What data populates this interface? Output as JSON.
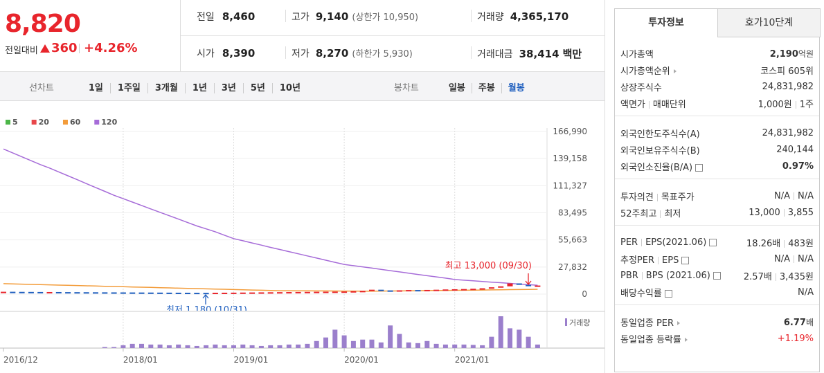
{
  "price": {
    "current": "8,820",
    "change_label": "전일대비",
    "change": "360",
    "change_rate": "+4.26%"
  },
  "summary": {
    "prev_label": "전일",
    "prev": "8,460",
    "high_label": "고가",
    "high": "9,140",
    "upper_label": "상한가",
    "upper": "10,950",
    "volume_label": "거래량",
    "volume": "4,365,170",
    "open_label": "시가",
    "open": "8,390",
    "low_label": "저가",
    "low": "8,270",
    "lower_label": "하한가",
    "lower": "5,930",
    "amount_label": "거래대금",
    "amount": "38,414",
    "amount_unit": "백만"
  },
  "toolbar": {
    "line_label": "선차트",
    "line_items": [
      "1일",
      "1주일",
      "3개월",
      "1년",
      "3년",
      "5년",
      "10년"
    ],
    "candle_label": "봉차트",
    "candle_items": [
      "일봉",
      "주봉",
      "월봉"
    ],
    "candle_active": 2
  },
  "tabs": [
    "투자정보",
    "호가10단계"
  ],
  "info": {
    "groups": [
      [
        {
          "label": "시가총액",
          "value": "2,190",
          "unit": "억원",
          "bold": true
        },
        {
          "label": "시가총액순위",
          "arrow": true,
          "value": "코스피 605위"
        },
        {
          "label": "상장주식수",
          "value": "24,831,982"
        },
        {
          "label": [
            "액면가",
            "매매단위"
          ],
          "value": [
            "1,000원",
            "1주"
          ]
        }
      ],
      [
        {
          "label": "외국인한도주식수(A)",
          "value": "24,831,982"
        },
        {
          "label": "외국인보유주식수(B)",
          "value": "240,144"
        },
        {
          "label": "외국인소진율(B/A)",
          "help": true,
          "value": "0.97%",
          "bold": true
        }
      ],
      [
        {
          "label": [
            "투자의견",
            "목표주가"
          ],
          "value": [
            "N/A",
            "N/A"
          ]
        },
        {
          "label": [
            "52주최고",
            "최저"
          ],
          "value": [
            "13,000",
            "3,855"
          ]
        }
      ],
      [
        {
          "label": [
            "PER",
            "EPS(2021.06)"
          ],
          "help": true,
          "value": [
            "18.26배",
            "483원"
          ]
        },
        {
          "label": [
            "추정PER",
            "EPS"
          ],
          "help": true,
          "value": [
            "N/A",
            "N/A"
          ]
        },
        {
          "label": [
            "PBR",
            "BPS (2021.06)"
          ],
          "help": true,
          "value": [
            "2.57배",
            "3,435원"
          ]
        },
        {
          "label": "배당수익률",
          "help": true,
          "value": "N/A"
        }
      ],
      [
        {
          "label": "동일업종 PER",
          "arrow": true,
          "value": "6.77",
          "unit": "배",
          "bold": true
        },
        {
          "label": "동일업종 등락률",
          "arrow": true,
          "value": "+1.19%",
          "color": "#e8252c"
        }
      ]
    ]
  },
  "chart": {
    "type": "candlestick",
    "categories": [
      "2016/12",
      null,
      null,
      null,
      null,
      null,
      null,
      null,
      null,
      null,
      null,
      null,
      null,
      "2018/01",
      null,
      null,
      null,
      null,
      null,
      null,
      null,
      null,
      null,
      null,
      null,
      "2019/01",
      null,
      null,
      null,
      null,
      null,
      null,
      null,
      null,
      null,
      null,
      null,
      "2020/01",
      null,
      null,
      null,
      null,
      null,
      null,
      null,
      null,
      null,
      null,
      null,
      "2021/01",
      null,
      null,
      null,
      null,
      null,
      null,
      null,
      null,
      null
    ],
    "ylim": [
      0,
      166990
    ],
    "yticks": [
      0,
      {
        "value": 27832,
        "label": "27,832"
      },
      {
        "value": 55663,
        "label": "55,663"
      },
      {
        "value": 83495,
        "label": "83,495"
      },
      {
        "value": 111327,
        "label": "111,327"
      },
      {
        "value": 139158,
        "label": "139,158"
      },
      {
        "value": 166990,
        "label": "166,990"
      }
    ],
    "close": [
      2400,
      2300,
      2250,
      2200,
      2100,
      2150,
      2050,
      2000,
      1950,
      1900,
      1850,
      1800,
      1750,
      1700,
      1650,
      1600,
      1550,
      1500,
      1450,
      1400,
      1350,
      1300,
      1250,
      1400,
      1450,
      1500,
      1600,
      1700,
      1800,
      1900,
      2000,
      2100,
      2200,
      2300,
      2400,
      2500,
      2600,
      2700,
      3000,
      3300,
      4500,
      3800,
      3600,
      3900,
      4200,
      4000,
      4300,
      4500,
      4800,
      5000,
      5200,
      5500,
      6000,
      7000,
      8000,
      11000,
      9500,
      8500,
      8820
    ],
    "series": [
      {
        "name": "5",
        "color": "#4cb648"
      },
      {
        "name": "20",
        "color": "#e8474b"
      },
      {
        "name": "60",
        "color": "#f39c3a",
        "values": [
          10700,
          10460,
          10220,
          9980,
          9740,
          9500,
          9260,
          9020,
          8780,
          8540,
          8300,
          8060,
          7820,
          7580,
          7340,
          7100,
          6860,
          6620,
          6380,
          6140,
          5900,
          5660,
          5420,
          5180,
          4940,
          4700,
          4460,
          4220,
          3980,
          3740,
          3500,
          3450,
          3400,
          3350,
          3300,
          3250,
          3200,
          3150,
          3100,
          3050,
          3000,
          3100,
          3200,
          3300,
          3400,
          3500,
          3600,
          3700,
          3800,
          3900,
          4000,
          4100,
          4200,
          4300,
          4400,
          4600,
          4700,
          4850,
          5000
        ]
      },
      {
        "name": "120",
        "color": "#a66cd8",
        "values": [
          149000,
          145000,
          141000,
          137000,
          133000,
          129500,
          125500,
          121500,
          117500,
          113500,
          109500,
          105500,
          101500,
          98000,
          94500,
          91000,
          87500,
          84000,
          80500,
          77000,
          73500,
          70000,
          67000,
          64000,
          60500,
          57000,
          54800,
          52500,
          50300,
          48000,
          45800,
          43600,
          41400,
          39200,
          37000,
          34800,
          32600,
          30500,
          29200,
          28000,
          26700,
          25400,
          24100,
          22800,
          21500,
          20200,
          18900,
          17700,
          16400,
          15000,
          14300,
          13700,
          13000,
          12300,
          11700,
          11000,
          10300,
          9700,
          9000
        ]
      }
    ],
    "volume_label": "거래량",
    "volume_color": "#9b7fcc",
    "volume": [
      0,
      0,
      0,
      0,
      0,
      0,
      0,
      0,
      0,
      0,
      0,
      300000,
      300000,
      800000,
      1200000,
      1200000,
      1000000,
      1000000,
      800000,
      1000000,
      800000,
      600000,
      800000,
      1000000,
      800000,
      800000,
      1000000,
      800000,
      600000,
      800000,
      800000,
      1000000,
      1000000,
      1200000,
      2000000,
      3000000,
      5200000,
      3600000,
      2000000,
      2400000,
      2400000,
      1600000,
      6400000,
      4000000,
      1600000,
      1400000,
      2000000,
      1200000,
      1000000,
      1000000,
      1000000,
      900000,
      800000,
      3200000,
      9000000,
      5600000,
      5200000,
      3200000,
      1000000
    ],
    "annotations": [
      {
        "text": "최고 13,000 (09/30)",
        "color": "#e8252c"
      },
      {
        "text": "최저 1,180 (10/31)",
        "color": "#1f5fbf"
      }
    ]
  }
}
